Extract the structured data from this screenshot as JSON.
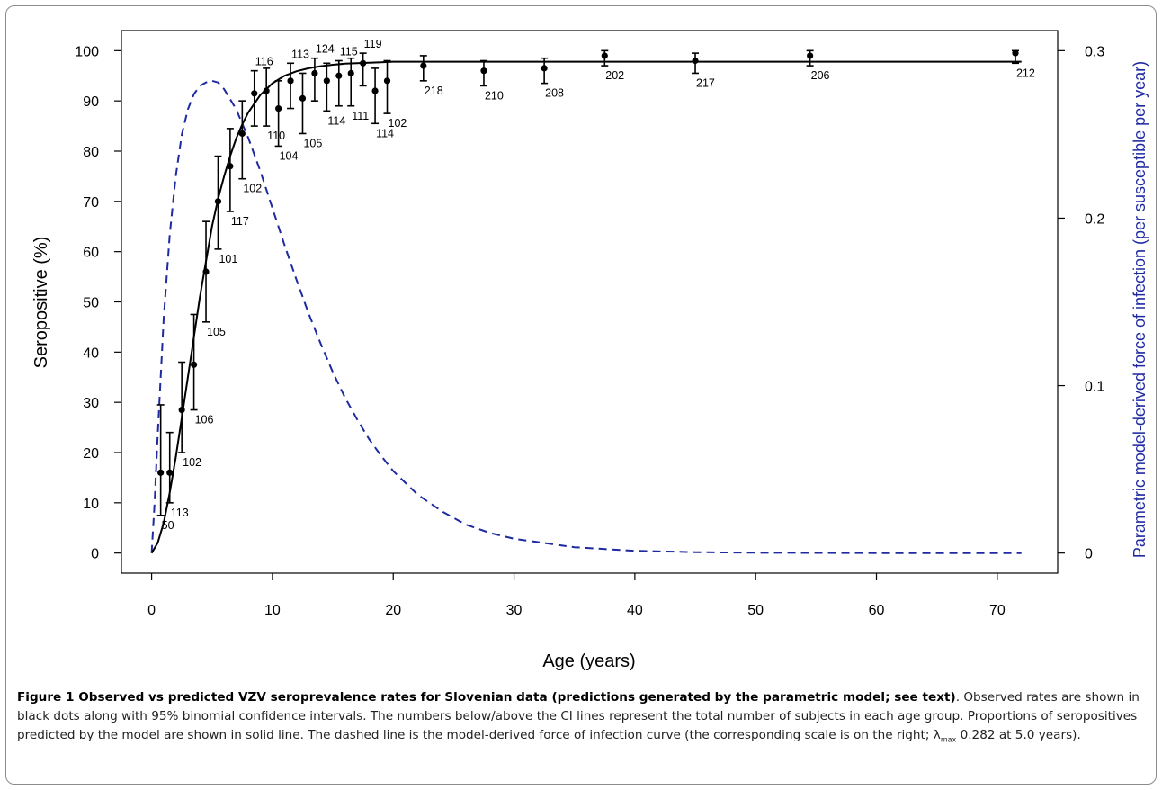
{
  "figure": {
    "caption_title": "Figure 1 Observed vs predicted VZV seroprevalence rates for Slovenian data (predictions generated by the parametric model; see text)",
    "caption_p1": ". Observed rates are shown in black dots along with 95% binomial confidence intervals. The numbers below/above the CI lines represent the total number of subjects in each age group. Proportions of seropositives predicted by the model are shown in solid line. The dashed line is the model-derived force of infection curve (the corresponding scale is on the right; ",
    "caption_lambda": "λ",
    "caption_lambda_sub": "max",
    "caption_p2": " 0.282 at 5.0 years)."
  },
  "chart_data": {
    "type": "scatter",
    "xlabel": "Age (years)",
    "ylabel": "Seropositive (%)",
    "ylabel_right": "Parametric model-derived force of infection (per susceptible per year)",
    "xlim": [
      -2.5,
      75
    ],
    "ylim": [
      -4,
      104
    ],
    "ylim_right": [
      -0.012,
      0.312
    ],
    "x_ticks": [
      0,
      10,
      20,
      30,
      40,
      50,
      60,
      70
    ],
    "y_ticks": [
      0,
      10,
      20,
      30,
      40,
      50,
      60,
      70,
      80,
      90,
      100
    ],
    "y_ticks_right": [
      0,
      0.1,
      0.2,
      0.3
    ],
    "colors": {
      "observed": "#000000",
      "model": "#000000",
      "force_of_infection": "#1f2aa0"
    },
    "observed": [
      {
        "x": 0.75,
        "y": 16.0,
        "lo": 7.5,
        "hi": 29.5,
        "n": "50",
        "pos": "below"
      },
      {
        "x": 1.5,
        "y": 16.0,
        "lo": 10.0,
        "hi": 24.0,
        "n": "113",
        "pos": "below"
      },
      {
        "x": 2.5,
        "y": 28.5,
        "lo": 20.0,
        "hi": 38.0,
        "n": "102",
        "pos": "below"
      },
      {
        "x": 3.5,
        "y": 37.5,
        "lo": 28.5,
        "hi": 47.5,
        "n": "106",
        "pos": "below"
      },
      {
        "x": 4.5,
        "y": 56.0,
        "lo": 46.0,
        "hi": 66.0,
        "n": "105",
        "pos": "below"
      },
      {
        "x": 5.5,
        "y": 70.0,
        "lo": 60.5,
        "hi": 79.0,
        "n": "101",
        "pos": "below"
      },
      {
        "x": 6.5,
        "y": 77.0,
        "lo": 68.0,
        "hi": 84.5,
        "n": "117",
        "pos": "below"
      },
      {
        "x": 7.5,
        "y": 83.5,
        "lo": 74.5,
        "hi": 90.0,
        "n": "102",
        "pos": "below"
      },
      {
        "x": 8.5,
        "y": 91.5,
        "lo": 85.0,
        "hi": 96.0,
        "n": "116",
        "pos": "above"
      },
      {
        "x": 9.5,
        "y": 92.0,
        "lo": 85.0,
        "hi": 96.5,
        "n": "110",
        "pos": "below"
      },
      {
        "x": 10.5,
        "y": 88.5,
        "lo": 81.0,
        "hi": 94.0,
        "n": "104",
        "pos": "below"
      },
      {
        "x": 11.5,
        "y": 94.0,
        "lo": 88.5,
        "hi": 97.5,
        "n": "113",
        "pos": "above"
      },
      {
        "x": 12.5,
        "y": 90.5,
        "lo": 83.5,
        "hi": 95.5,
        "n": "105",
        "pos": "below"
      },
      {
        "x": 13.5,
        "y": 95.5,
        "lo": 90.0,
        "hi": 98.5,
        "n": "124",
        "pos": "above"
      },
      {
        "x": 14.5,
        "y": 94.0,
        "lo": 88.0,
        "hi": 97.5,
        "n": "114",
        "pos": "below"
      },
      {
        "x": 15.5,
        "y": 95.0,
        "lo": 89.0,
        "hi": 98.0,
        "n": "115",
        "pos": "above"
      },
      {
        "x": 16.5,
        "y": 95.5,
        "lo": 89.0,
        "hi": 98.5,
        "n": "111",
        "pos": "below"
      },
      {
        "x": 17.5,
        "y": 97.5,
        "lo": 93.0,
        "hi": 99.5,
        "n": "119",
        "pos": "above"
      },
      {
        "x": 18.5,
        "y": 92.0,
        "lo": 85.5,
        "hi": 96.5,
        "n": "114",
        "pos": "below"
      },
      {
        "x": 19.5,
        "y": 94.0,
        "lo": 87.5,
        "hi": 98.0,
        "n": "102",
        "pos": "below"
      },
      {
        "x": 22.5,
        "y": 97.0,
        "lo": 94.0,
        "hi": 99.0,
        "n": "218",
        "pos": "below"
      },
      {
        "x": 27.5,
        "y": 96.0,
        "lo": 93.0,
        "hi": 98.0,
        "n": "210",
        "pos": "below"
      },
      {
        "x": 32.5,
        "y": 96.5,
        "lo": 93.5,
        "hi": 98.5,
        "n": "208",
        "pos": "below"
      },
      {
        "x": 37.5,
        "y": 99.0,
        "lo": 97.0,
        "hi": 100.0,
        "n": "202",
        "pos": "below"
      },
      {
        "x": 45.0,
        "y": 98.0,
        "lo": 95.5,
        "hi": 99.5,
        "n": "217",
        "pos": "below"
      },
      {
        "x": 54.5,
        "y": 99.0,
        "lo": 97.0,
        "hi": 100.0,
        "n": "206",
        "pos": "below"
      },
      {
        "x": 71.5,
        "y": 99.5,
        "lo": 97.5,
        "hi": 100.0,
        "n": "212",
        "pos": "below"
      }
    ],
    "model_curve": {
      "x": [
        0,
        0.5,
        1,
        1.5,
        2,
        2.5,
        3,
        3.5,
        4,
        4.5,
        5,
        5.5,
        6,
        6.5,
        7,
        7.5,
        8,
        9,
        10,
        11,
        12,
        13,
        14,
        15,
        16,
        17,
        18,
        19,
        20,
        22,
        24,
        26,
        28,
        30,
        35,
        40,
        50,
        60,
        72
      ],
      "y": [
        0,
        2,
        6,
        12,
        19,
        27,
        35,
        43,
        51,
        58,
        65,
        70.5,
        75,
        79,
        82.5,
        85.3,
        87.7,
        91.2,
        93.5,
        95,
        95.9,
        96.5,
        96.9,
        97.2,
        97.4,
        97.5,
        97.6,
        97.7,
        97.8,
        97.8,
        97.8,
        97.8,
        97.8,
        97.8,
        97.8,
        97.8,
        97.8,
        97.8,
        97.8
      ]
    },
    "force_of_infection": {
      "x": [
        0,
        0.25,
        0.5,
        1,
        1.5,
        2,
        2.5,
        3,
        3.5,
        4,
        4.5,
        5,
        5.5,
        6,
        7,
        8,
        9,
        10,
        11,
        12,
        13,
        14,
        15,
        16,
        17,
        18,
        19,
        20,
        22,
        24,
        26,
        28,
        30,
        35,
        40,
        45,
        50,
        60,
        72
      ],
      "y": [
        0,
        0.03,
        0.07,
        0.14,
        0.19,
        0.225,
        0.25,
        0.265,
        0.274,
        0.279,
        0.281,
        0.282,
        0.281,
        0.277,
        0.265,
        0.248,
        0.228,
        0.206,
        0.184,
        0.163,
        0.143,
        0.125,
        0.108,
        0.093,
        0.08,
        0.068,
        0.058,
        0.049,
        0.035,
        0.025,
        0.017,
        0.012,
        0.0085,
        0.0035,
        0.0013,
        0.0005,
        0.0002,
        0.0,
        0.0
      ]
    }
  }
}
